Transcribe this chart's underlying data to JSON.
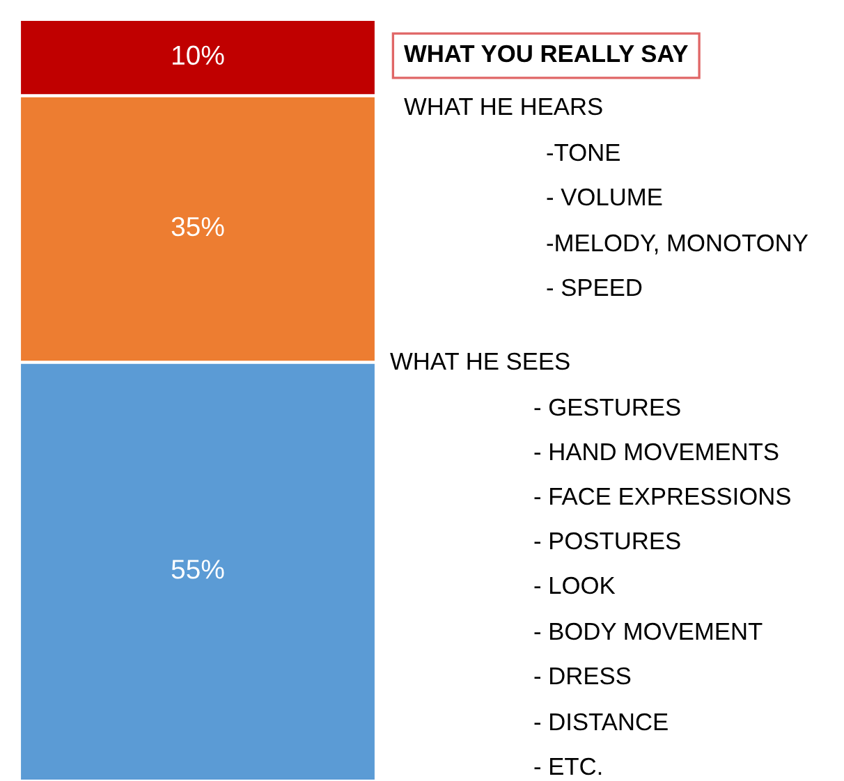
{
  "chart_data": {
    "type": "bar",
    "stacked": true,
    "categories": [
      null
    ],
    "series": [
      {
        "color": "#5b9bd5",
        "values": [
          55
        ],
        "value_labels": [
          "55%"
        ]
      },
      {
        "color": "#ed7d31",
        "values": [
          35
        ],
        "value_labels": [
          "35%"
        ]
      },
      {
        "color": "#c00000",
        "values": [
          10
        ],
        "value_labels": [
          "10%"
        ]
      }
    ],
    "tick_labels": false,
    "annotations": [
      "WHAT YOU REALLY SAY",
      "WHAT HE HEARS",
      "-TONE",
      "- VOLUME",
      "-MELODY, MONOTONY",
      "- SPEED",
      "WHAT HE SEES",
      "- GESTURES",
      "- HAND MOVEMENTS",
      "- FACE EXPRESSIONS",
      "- POSTURES",
      "- LOOK",
      "- BODY MOVEMENT",
      "- DRESS",
      "- DISTANCE",
      "- ETC."
    ]
  }
}
